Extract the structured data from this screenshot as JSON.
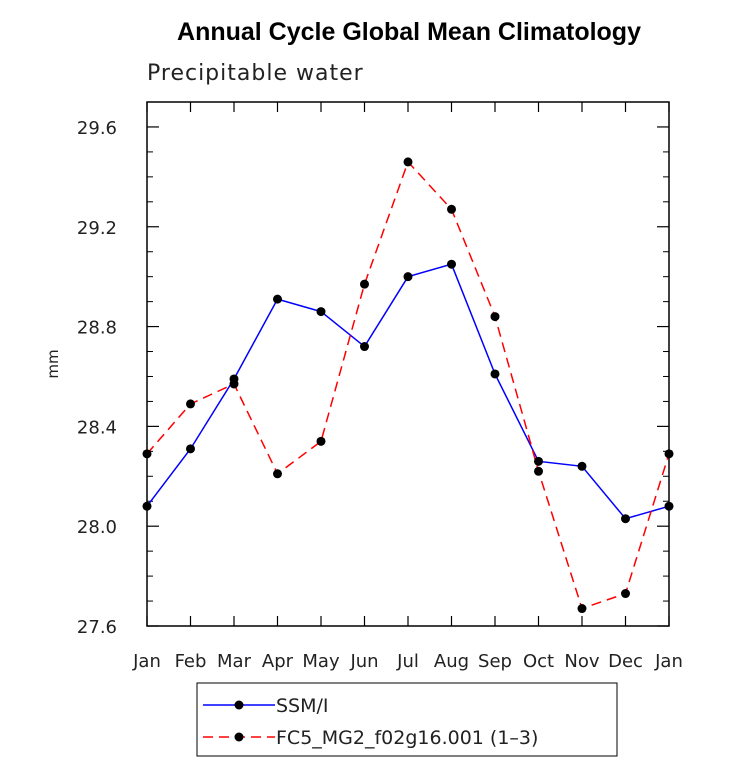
{
  "chart_data": {
    "type": "line",
    "title": "Annual Cycle Global Mean Climatology",
    "subtitle": "Precipitable water",
    "xlabel": "",
    "ylabel": "mm",
    "categories": [
      "Jan",
      "Feb",
      "Mar",
      "Apr",
      "May",
      "Jun",
      "Jul",
      "Aug",
      "Sep",
      "Oct",
      "Nov",
      "Dec",
      "Jan"
    ],
    "ylim": [
      27.6,
      29.7
    ],
    "yticks": [
      "27.6",
      "28.0",
      "28.4",
      "28.8",
      "29.2",
      "29.6"
    ],
    "grid": false,
    "legend_position": "bottom",
    "series": [
      {
        "name": "SSM/I",
        "color": "#0000ff",
        "style": "solid",
        "marker": "circle",
        "values": [
          28.08,
          28.31,
          28.59,
          28.91,
          28.86,
          28.72,
          29.0,
          29.05,
          28.61,
          28.26,
          28.24,
          28.03,
          28.08
        ]
      },
      {
        "name": "FC5_MG2_f02g16.001 (1–3)",
        "color": "#ff0000",
        "style": "dashed",
        "marker": "circle",
        "values": [
          28.29,
          28.49,
          28.57,
          28.21,
          28.34,
          28.97,
          29.46,
          29.27,
          28.84,
          28.22,
          27.67,
          27.73,
          28.29
        ]
      }
    ]
  }
}
